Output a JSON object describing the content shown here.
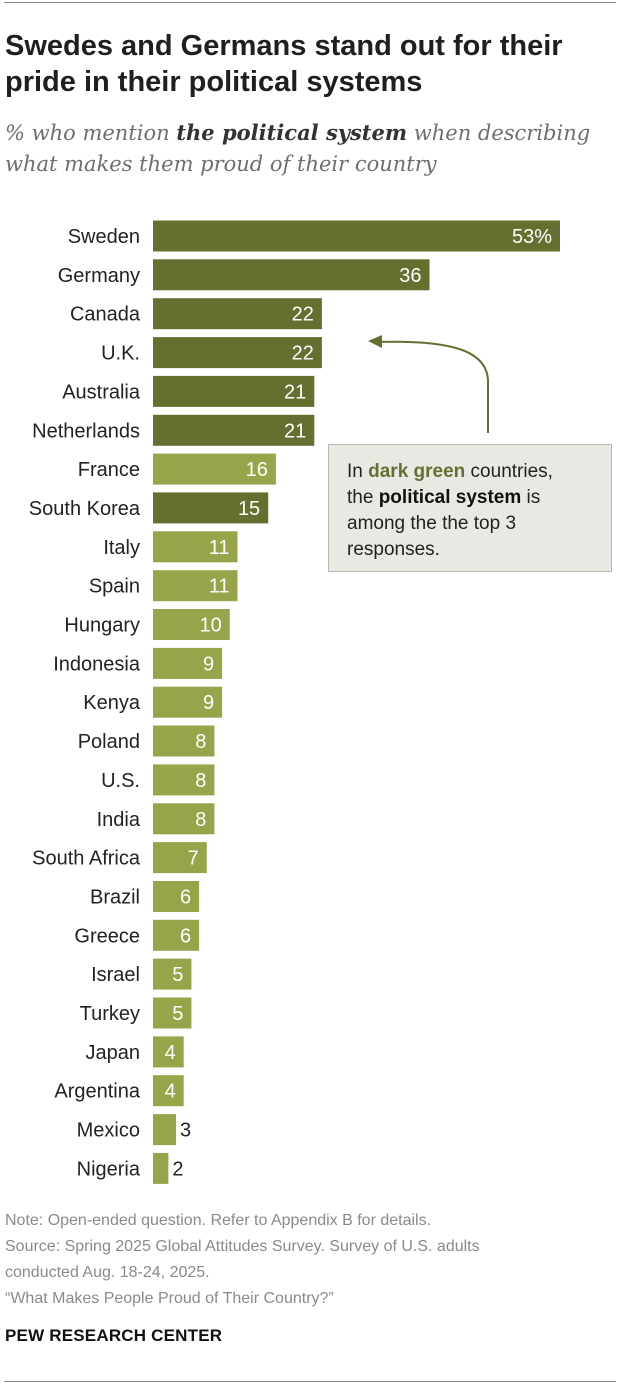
{
  "title": "Swedes and Germans stand out for their pride in their political systems",
  "subtitle": {
    "before": "% who mention ",
    "bold": "the political system",
    "after": " when describing what makes them proud of their country"
  },
  "colors": {
    "dark": "#676f30",
    "light": "#98a44a",
    "value_text_inside": "#ffffff",
    "value_text_outside": "#222222",
    "arrow": "#676f30"
  },
  "chart_data": {
    "type": "bar",
    "orientation": "horizontal",
    "title": "Swedes and Germans stand out for their pride in their political systems",
    "xlabel": "",
    "ylabel": "",
    "xlim": [
      0,
      53
    ],
    "unit_suffix_first": "%",
    "categories": [
      "Sweden",
      "Germany",
      "Canada",
      "U.K.",
      "Australia",
      "Netherlands",
      "France",
      "South Korea",
      "Italy",
      "Spain",
      "Hungary",
      "Indonesia",
      "Kenya",
      "Poland",
      "U.S.",
      "India",
      "South Africa",
      "Brazil",
      "Greece",
      "Israel",
      "Turkey",
      "Japan",
      "Argentina",
      "Mexico",
      "Nigeria"
    ],
    "values": [
      53,
      36,
      22,
      22,
      21,
      21,
      16,
      15,
      11,
      11,
      10,
      9,
      9,
      8,
      8,
      8,
      7,
      6,
      6,
      5,
      5,
      4,
      4,
      3,
      2
    ],
    "top3": [
      true,
      true,
      true,
      true,
      true,
      true,
      false,
      true,
      false,
      false,
      false,
      false,
      false,
      false,
      false,
      false,
      false,
      false,
      false,
      false,
      false,
      false,
      false,
      false,
      false
    ]
  },
  "annotation": {
    "line1_before": "In ",
    "line1_highlight": "dark green",
    "line1_after": " countries,",
    "line2_before": "the ",
    "line2_bold": "political system",
    "line2_after": " is",
    "line3": "among the the top 3",
    "line4": "responses."
  },
  "notes": {
    "note": "Note: Open-ended question. Refer to Appendix B for details.",
    "source1": "Source: Spring 2025 Global Attitudes Survey. Survey of U.S. adults",
    "source2": "conducted Aug. 18-24, 2025.",
    "report": "“What Makes People Proud of Their Country?”"
  },
  "brand": "PEW RESEARCH CENTER"
}
